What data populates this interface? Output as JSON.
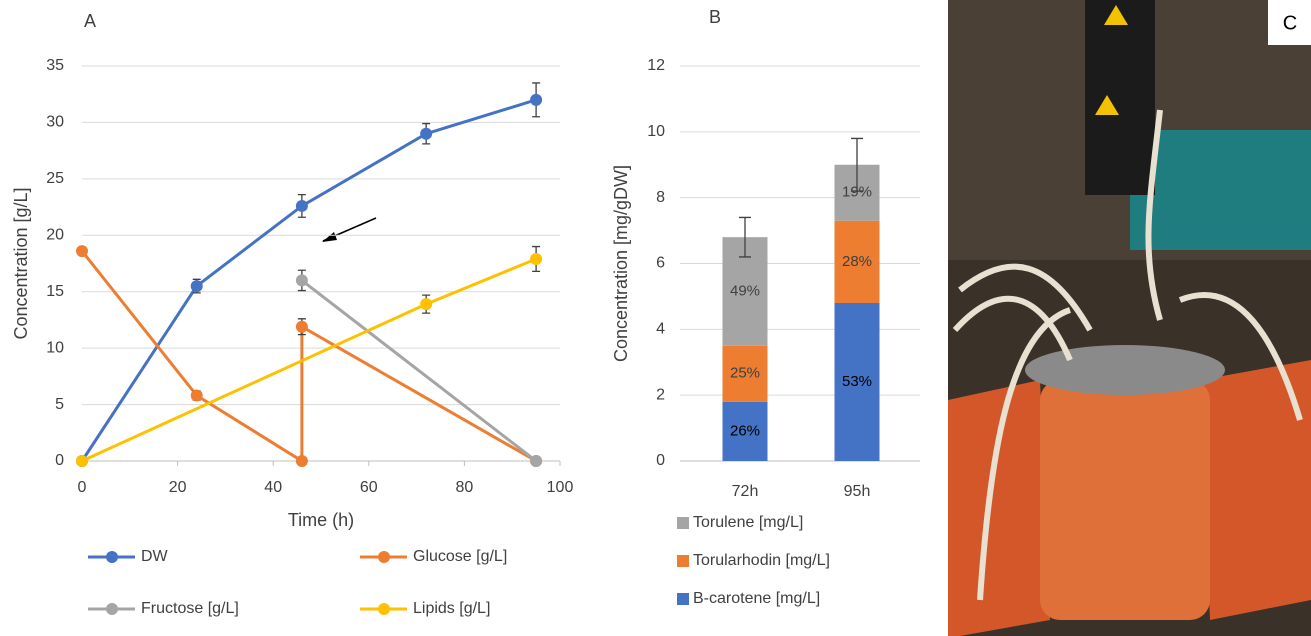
{
  "chart_data": [
    {
      "type": "line",
      "panel": "A",
      "x_label": "Time (h)",
      "y_label": "Concentration [g/L]",
      "xlim": [
        0,
        100
      ],
      "xticks": [
        0,
        20,
        40,
        60,
        80,
        100
      ],
      "ylim": [
        0,
        35
      ],
      "yticks": [
        0,
        5,
        10,
        15,
        20,
        25,
        30,
        35
      ],
      "grid": true,
      "series": [
        {
          "name": "DW",
          "color": "#4472c4",
          "x": [
            0,
            24,
            46,
            72,
            95
          ],
          "values": [
            0,
            15.5,
            22.6,
            29,
            32
          ],
          "errors": [
            0,
            0.6,
            1,
            0.9,
            1.5
          ]
        },
        {
          "name": "Glucose [g/L]",
          "color": "#ed7d31",
          "x": [
            0,
            24,
            46,
            46,
            95
          ],
          "values": [
            18.6,
            5.8,
            0,
            11.9,
            0
          ],
          "errors": [
            0,
            0.4,
            0,
            0.7,
            0
          ]
        },
        {
          "name": "Fructose [g/L]",
          "color": "#a5a5a5",
          "x": [
            46,
            95
          ],
          "values": [
            16,
            0
          ],
          "errors": [
            0.9,
            0
          ]
        },
        {
          "name": "Lipids [g/L]",
          "color": "#ffc000",
          "x": [
            0,
            72,
            95
          ],
          "values": [
            0,
            13.9,
            17.9
          ],
          "errors": [
            0,
            0.8,
            1.1
          ]
        }
      ]
    },
    {
      "type": "stacked_bar",
      "panel": "B",
      "y_label": "Concentration [mg/gDW]",
      "categories": [
        "72h",
        "95h"
      ],
      "ylim": [
        0,
        12
      ],
      "yticks": [
        0,
        2,
        4,
        6,
        8,
        10,
        12
      ],
      "grid": true,
      "series": [
        {
          "name": "B-carotene [mg/L]",
          "color": "#4472c4",
          "values": [
            1.8,
            4.8
          ],
          "percent_labels": [
            "26%",
            "53%"
          ]
        },
        {
          "name": "Torularhodin  [mg/L]",
          "color": "#ed7d31",
          "values": [
            1.7,
            2.5
          ],
          "percent_labels": [
            "25%",
            "28%"
          ]
        },
        {
          "name": "Torulene  [mg/L]",
          "color": "#a5a5a5",
          "values": [
            3.3,
            1.7
          ],
          "percent_labels": [
            "49%",
            "19%"
          ],
          "errors": [
            0.6,
            0.8
          ]
        }
      ]
    }
  ],
  "photo": {
    "panel": "C"
  }
}
